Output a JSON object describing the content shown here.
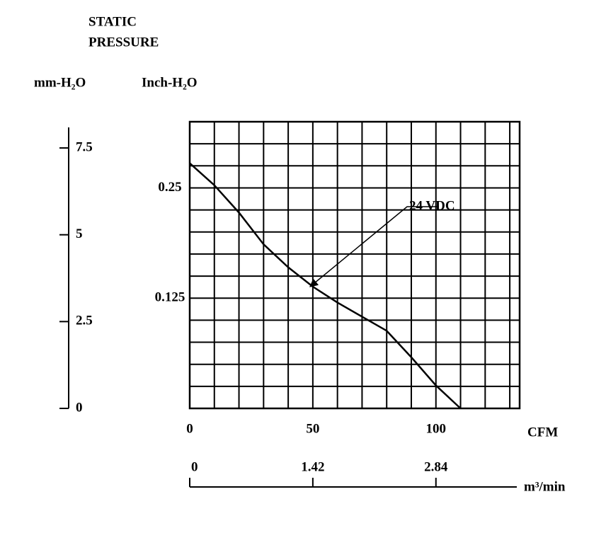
{
  "chart_data": {
    "type": "line",
    "title_lines": [
      "STATIC",
      "PRESSURE"
    ],
    "ylabel": "Inch-H₂O",
    "y2label": "mm-H₂O",
    "xlabel": "CFM",
    "x2label": "m³/min",
    "x": [
      0,
      10,
      20,
      30,
      40,
      50,
      60,
      70,
      80,
      90,
      100,
      110
    ],
    "series": [
      {
        "name": "24 VDC",
        "color": "#000000",
        "values": [
          0.278,
          0.253,
          0.222,
          0.186,
          0.16,
          0.138,
          0.12,
          0.104,
          0.088,
          0.058,
          0.026,
          0
        ]
      }
    ],
    "xlim": [
      0,
      134
    ],
    "xticks": [
      0,
      50,
      100
    ],
    "x2lim": [
      0,
      3.8056
    ],
    "x2ticks": [
      0,
      1.42,
      2.84
    ],
    "ylim": [
      0,
      0.325
    ],
    "yticks": [
      0.125,
      0.25
    ],
    "y2lim": [
      0,
      8.255
    ],
    "y2ticks": [
      0,
      2.5,
      5,
      7.5
    ],
    "xgrid": [
      0,
      10,
      20,
      30,
      40,
      50,
      60,
      70,
      80,
      90,
      100,
      110,
      120,
      130
    ],
    "ygrid": [
      0,
      0.025,
      0.05,
      0.075,
      0.1,
      0.125,
      0.15,
      0.175,
      0.2,
      0.225,
      0.25,
      0.275,
      0.3,
      0.325
    ],
    "grid": true
  }
}
